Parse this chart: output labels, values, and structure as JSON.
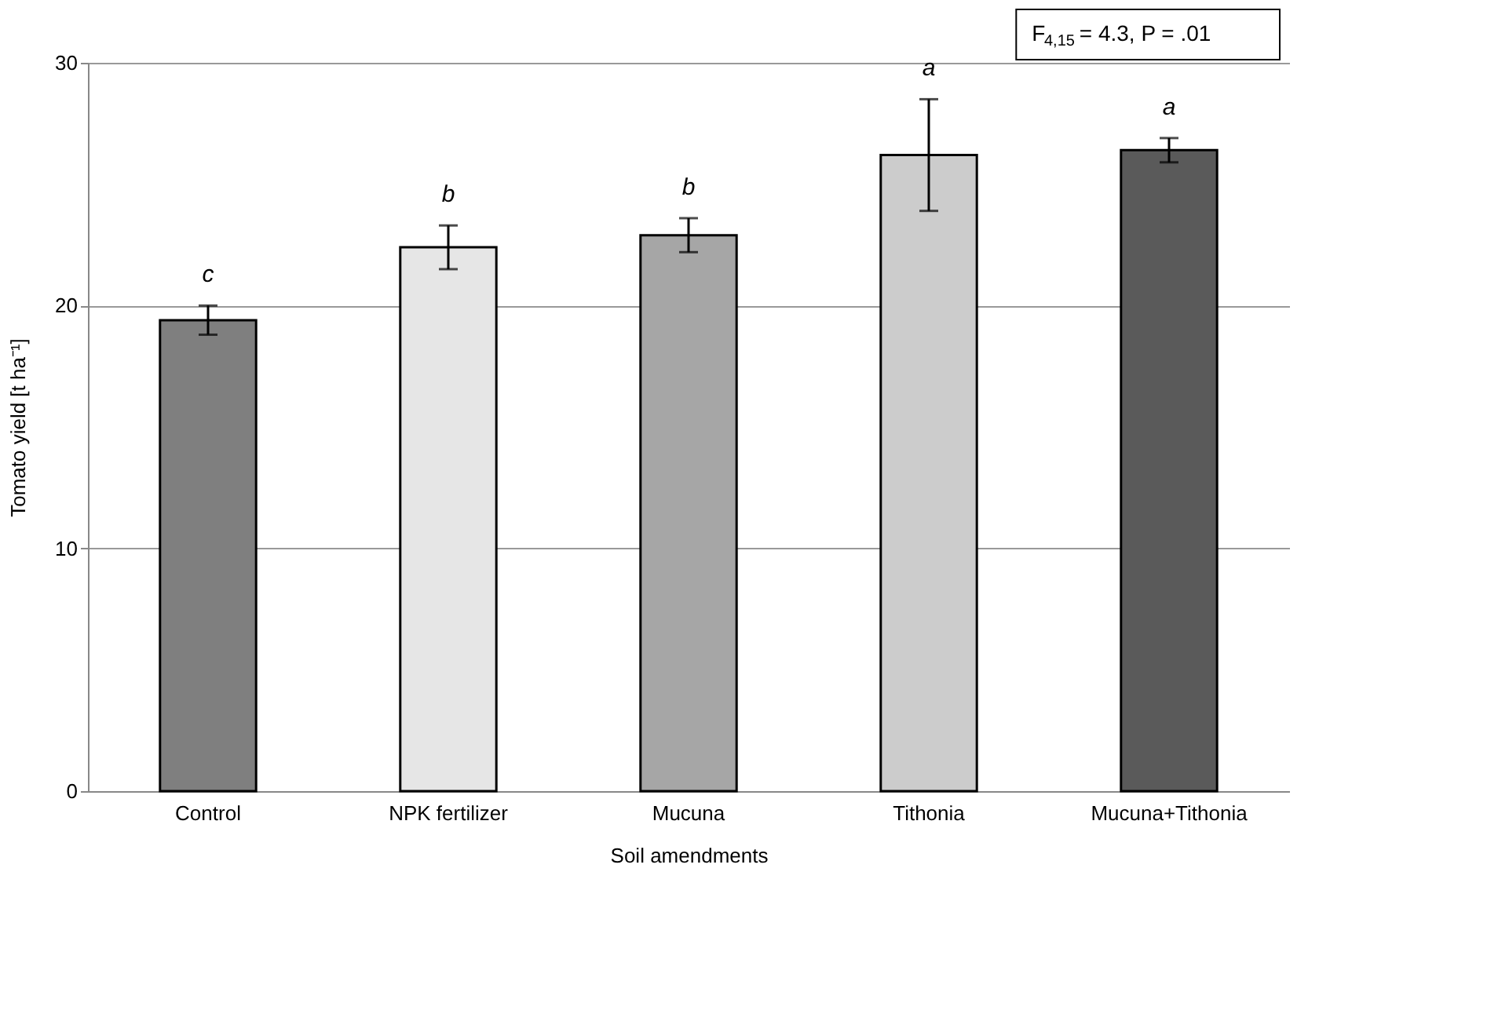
{
  "chart_data": {
    "type": "bar",
    "xlabel": "Soil amendments",
    "ylabel": "Tomato yield [t ha⁻¹]",
    "categories": [
      "Control",
      "NPK fertilizer",
      "Mucuna",
      "Tithonia",
      "Mucuna+Tithonia"
    ],
    "values": [
      19.4,
      22.4,
      22.9,
      26.2,
      26.4
    ],
    "errors": [
      0.6,
      0.9,
      0.7,
      2.3,
      0.5
    ],
    "colors": [
      "#7f7f7f",
      "#e6e6e6",
      "#a6a6a6",
      "#cccccc",
      "#5a5a5a"
    ],
    "ylim": [
      0,
      30
    ],
    "yticks": [
      0,
      10,
      20,
      30
    ],
    "grid": "y",
    "annotations": [
      {
        "text": "c",
        "x": "Control",
        "y": 20.0
      },
      {
        "text": "b",
        "x": "NPK fertilizer",
        "y": 23.3
      },
      {
        "text": "b",
        "x": "Mucuna",
        "y": 23.6
      },
      {
        "text": "a",
        "x": "Tithonia",
        "y": 28.5
      },
      {
        "text": "a",
        "x": "Mucuna+Tithonia",
        "y": 26.9
      },
      "F$_{4,15}$ = 4.3, P = .01"
    ]
  }
}
